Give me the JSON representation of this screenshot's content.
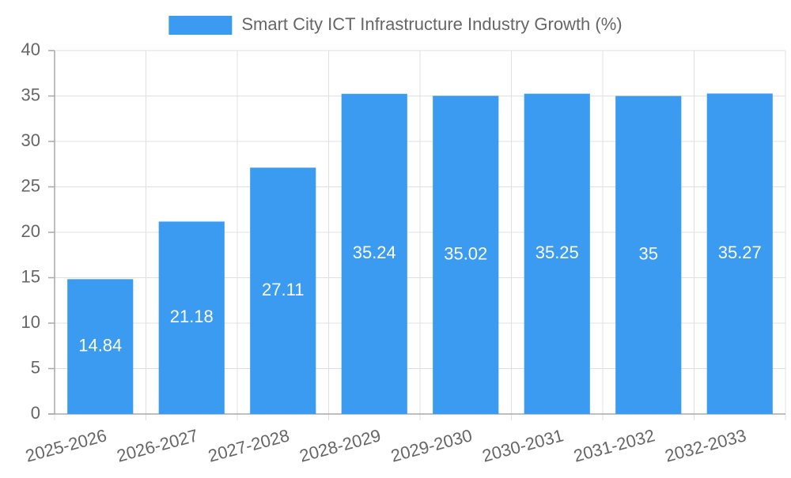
{
  "chart_data": {
    "type": "bar",
    "categories": [
      "2025-2026",
      "2026-2027",
      "2027-2028",
      "2028-2029",
      "2029-2030",
      "2030-2031",
      "2031-2032",
      "2032-2033"
    ],
    "series": [
      {
        "name": "Smart City ICT Infrastructure Industry Growth (%)",
        "values": [
          14.84,
          21.18,
          27.11,
          35.24,
          35.02,
          35.25,
          35,
          35.27
        ],
        "data_labels": [
          "14.84",
          "21.18",
          "27.11",
          "35.24",
          "35.02",
          "35.25",
          "35",
          "35.27"
        ],
        "color": "#3a9bf0"
      }
    ],
    "ylim": [
      0,
      40
    ],
    "y_ticks": [
      0,
      5,
      10,
      15,
      20,
      25,
      30,
      35,
      40
    ],
    "y_tick_labels": [
      "0",
      "5",
      "10",
      "15",
      "20",
      "25",
      "30",
      "35",
      "40"
    ],
    "legend_position": "top-center",
    "grid": true,
    "x_tick_rotation": "slanted",
    "colors": {
      "grid": "#e0e0e0",
      "axis": "#a8a8a8",
      "tick_text": "#666666",
      "data_label": "#ffffff"
    }
  }
}
